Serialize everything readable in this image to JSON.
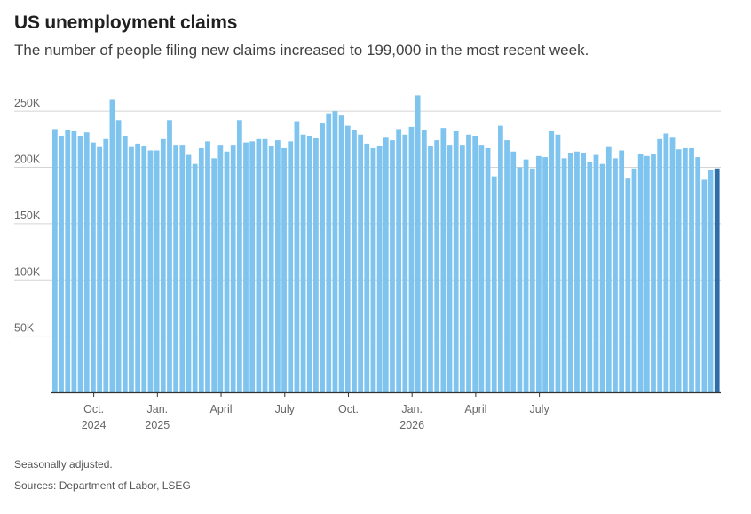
{
  "header": {
    "title": "US unemployment claims",
    "subtitle": "The number of people filing new claims increased to 199,000 in the most recent week."
  },
  "footer": {
    "note": "Seasonally adjusted.",
    "sources": "Sources: Department of Labor, LSEG"
  },
  "colors": {
    "bar": "#7fc4ef",
    "bar_latest": "#2e6ea8",
    "grid": "#d4d4d4",
    "axis": "#333333"
  },
  "chart_data": {
    "type": "bar",
    "ylim": [
      0,
      265000
    ],
    "yticks": [
      {
        "value": 50000,
        "label": "50K"
      },
      {
        "value": 100000,
        "label": "100K"
      },
      {
        "value": 150000,
        "label": "150K"
      },
      {
        "value": 200000,
        "label": "200K"
      },
      {
        "value": 250000,
        "label": "250K"
      }
    ],
    "xticks": [
      {
        "index": 6.5,
        "line1": "Oct.",
        "line2": "2024"
      },
      {
        "index": 16.5,
        "line1": "Jan.",
        "line2": "2025"
      },
      {
        "index": 26.5,
        "line1": "April",
        "line2": ""
      },
      {
        "index": 36.5,
        "line1": "July",
        "line2": ""
      },
      {
        "index": 46.5,
        "line1": "Oct.",
        "line2": ""
      },
      {
        "index": 56.5,
        "line1": "Jan.",
        "line2": "2026"
      },
      {
        "index": 66.5,
        "line1": "April",
        "line2": ""
      },
      {
        "index": 76.5,
        "line1": "July",
        "line2": ""
      }
    ],
    "values": [
      234000,
      228000,
      233000,
      232000,
      228000,
      231000,
      222000,
      218000,
      225000,
      260000,
      242000,
      228000,
      218000,
      221000,
      219000,
      215000,
      215000,
      225000,
      242000,
      220000,
      220000,
      211000,
      203000,
      217000,
      223000,
      208000,
      220000,
      214000,
      220000,
      242000,
      222000,
      223000,
      225000,
      225000,
      219000,
      224000,
      217000,
      223000,
      241000,
      229000,
      228000,
      226000,
      239000,
      248000,
      250000,
      246000,
      237000,
      233000,
      229000,
      221000,
      217000,
      219000,
      227000,
      224000,
      234000,
      229000,
      236000,
      264000,
      233000,
      219000,
      224000,
      235000,
      220000,
      232000,
      220000,
      229000,
      228000,
      220000,
      217000,
      192000,
      237000,
      224000,
      214000,
      200000,
      207000,
      199000,
      210000,
      209000,
      232000,
      229000,
      208000,
      213000,
      214000,
      213000,
      205000,
      211000,
      203000,
      218000,
      208000,
      215000,
      190000,
      199000,
      212000,
      210000,
      212000,
      225000,
      230000,
      227000,
      216000,
      217000,
      217000,
      209000,
      189000,
      198000,
      199000
    ]
  }
}
